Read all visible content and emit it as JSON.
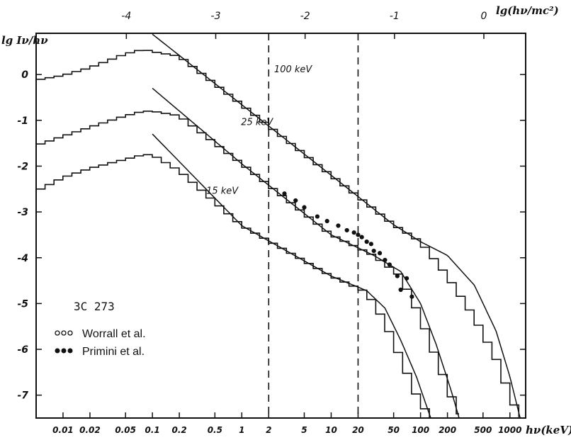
{
  "chart_data": {
    "type": "line",
    "title": "",
    "object_label": "3C 273",
    "xlabel": "hν(keV)",
    "x_top_label": "lg(hν/mc²)",
    "ylabel": "lg Iν/hν",
    "x_scale": "log",
    "xlim": [
      0.005,
      1500
    ],
    "ylim": [
      -7.5,
      0.9
    ],
    "x_ticks_bottom": [
      {
        "value": 0.01,
        "label": "0.01"
      },
      {
        "value": 0.02,
        "label": "0.02"
      },
      {
        "value": 0.05,
        "label": "0.05"
      },
      {
        "value": 0.1,
        "label": "0.1"
      },
      {
        "value": 0.2,
        "label": "0.2"
      },
      {
        "value": 0.5,
        "label": "0.5"
      },
      {
        "value": 1,
        "label": "1"
      },
      {
        "value": 2,
        "label": "2"
      },
      {
        "value": 5,
        "label": "5"
      },
      {
        "value": 10,
        "label": "10"
      },
      {
        "value": 20,
        "label": "20"
      },
      {
        "value": 50,
        "label": "50"
      },
      {
        "value": 100,
        "label": "100"
      },
      {
        "value": 200,
        "label": "200"
      },
      {
        "value": 500,
        "label": "500"
      },
      {
        "value": 1000,
        "label": "1000"
      }
    ],
    "x_ticks_top": [
      {
        "value": -4,
        "label": "-4"
      },
      {
        "value": -3,
        "label": "-3"
      },
      {
        "value": -2,
        "label": "-2"
      },
      {
        "value": -1,
        "label": "-1"
      },
      {
        "value": 0,
        "label": "0"
      }
    ],
    "y_ticks": [
      {
        "value": 0,
        "label": "0"
      },
      {
        "value": -1,
        "label": "-1"
      },
      {
        "value": -2,
        "label": "-2"
      },
      {
        "value": -3,
        "label": "-3"
      },
      {
        "value": -4,
        "label": "-4"
      },
      {
        "value": -5,
        "label": "-5"
      },
      {
        "value": -6,
        "label": "-6"
      },
      {
        "value": -7,
        "label": "-7"
      }
    ],
    "vlines": [
      2,
      20
    ],
    "series": [
      {
        "name": "100 keV",
        "label_x": 2.3,
        "label_y": 0.05,
        "smooth": [
          [
            0.1,
            0.88
          ],
          [
            1,
            -0.66
          ],
          [
            10,
            -2.2
          ],
          [
            50,
            -3.28
          ],
          [
            100,
            -3.65
          ],
          [
            200,
            -3.95
          ],
          [
            400,
            -4.6
          ],
          [
            700,
            -5.6
          ],
          [
            1000,
            -6.6
          ],
          [
            1300,
            -7.5
          ]
        ],
        "hist": [
          [
            0.005,
            -0.12
          ],
          [
            0.01,
            -0.02
          ],
          [
            0.02,
            0.15
          ],
          [
            0.05,
            0.45
          ],
          [
            0.08,
            0.55
          ],
          [
            0.1,
            0.5
          ],
          [
            0.2,
            0.4
          ],
          [
            1,
            -0.66
          ],
          [
            10,
            -2.2
          ],
          [
            50,
            -3.28
          ],
          [
            100,
            -3.65
          ],
          [
            200,
            -4.4
          ],
          [
            400,
            -5.3
          ],
          [
            700,
            -6.2
          ],
          [
            1000,
            -7.0
          ],
          [
            1300,
            -7.5
          ]
        ]
      },
      {
        "name": "25 keV",
        "label_x": 0.98,
        "label_y": -1.1,
        "smooth": [
          [
            0.1,
            -0.3
          ],
          [
            1,
            -1.95
          ],
          [
            10,
            -3.5
          ],
          [
            30,
            -3.95
          ],
          [
            60,
            -4.3
          ],
          [
            100,
            -5.0
          ],
          [
            150,
            -5.9
          ],
          [
            220,
            -6.9
          ],
          [
            270,
            -7.5
          ]
        ],
        "hist": [
          [
            0.005,
            -1.55
          ],
          [
            0.01,
            -1.35
          ],
          [
            0.02,
            -1.15
          ],
          [
            0.05,
            -0.9
          ],
          [
            0.08,
            -0.8
          ],
          [
            0.1,
            -0.8
          ],
          [
            0.2,
            -0.9
          ],
          [
            1,
            -1.95
          ],
          [
            10,
            -3.5
          ],
          [
            30,
            -3.95
          ],
          [
            60,
            -4.4
          ],
          [
            100,
            -5.3
          ],
          [
            150,
            -6.2
          ],
          [
            220,
            -7.0
          ],
          [
            270,
            -7.5
          ]
        ]
      },
      {
        "name": "15 keV",
        "label_x": 0.4,
        "label_y": -2.6,
        "smooth": [
          [
            0.1,
            -1.3
          ],
          [
            1,
            -3.3
          ],
          [
            10,
            -4.4
          ],
          [
            25,
            -4.72
          ],
          [
            40,
            -5.1
          ],
          [
            60,
            -5.8
          ],
          [
            90,
            -6.6
          ],
          [
            130,
            -7.5
          ]
        ],
        "hist": [
          [
            0.005,
            -2.55
          ],
          [
            0.01,
            -2.25
          ],
          [
            0.02,
            -2.05
          ],
          [
            0.05,
            -1.85
          ],
          [
            0.08,
            -1.75
          ],
          [
            0.1,
            -1.75
          ],
          [
            0.2,
            -2.1
          ],
          [
            1,
            -3.3
          ],
          [
            10,
            -4.4
          ],
          [
            25,
            -4.75
          ],
          [
            40,
            -5.4
          ],
          [
            60,
            -6.2
          ],
          [
            90,
            -7.0
          ],
          [
            130,
            -7.5
          ]
        ]
      }
    ],
    "scatter": [
      {
        "name": "Worrall et al.",
        "marker": "open",
        "points": []
      },
      {
        "name": "Primini et al.",
        "marker": "filled",
        "points": [
          [
            3,
            -2.6
          ],
          [
            4,
            -2.75
          ],
          [
            5,
            -2.9
          ],
          [
            7,
            -3.1
          ],
          [
            9,
            -3.2
          ],
          [
            12,
            -3.3
          ],
          [
            15,
            -3.4
          ],
          [
            18,
            -3.45
          ],
          [
            20,
            -3.5
          ],
          [
            22,
            -3.55
          ],
          [
            25,
            -3.65
          ],
          [
            28,
            -3.7
          ],
          [
            30,
            -3.85
          ],
          [
            35,
            -3.9
          ],
          [
            40,
            -4.05
          ],
          [
            45,
            -4.15
          ],
          [
            55,
            -4.4
          ],
          [
            70,
            -4.45
          ],
          [
            60,
            -4.7
          ],
          [
            80,
            -4.85
          ]
        ]
      }
    ],
    "legend": [
      {
        "label": "Worrall et al.",
        "marker": "open"
      },
      {
        "label": "Primini et al.",
        "marker": "filled"
      }
    ],
    "legend_position": "bottom-left",
    "grid": false
  }
}
